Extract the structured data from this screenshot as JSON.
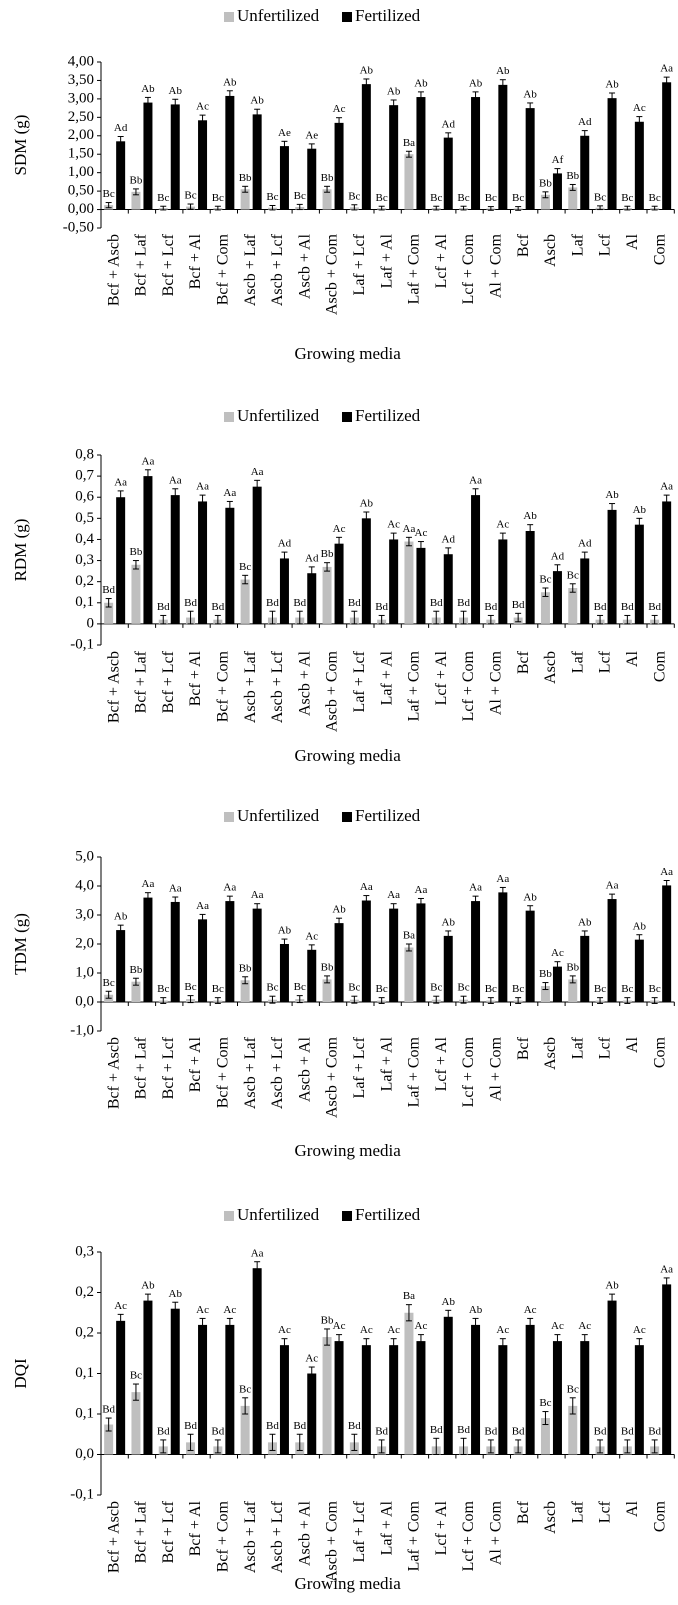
{
  "chart_data": [
    {
      "type": "bar",
      "ylabel": "SDM (g)",
      "xlabel": "Growing media",
      "categories": [
        "Bcf + Ascb",
        "Bcf + Laf",
        "Bcf + Lcf",
        "Bcf + Al",
        "Bcf + Com",
        "Ascb + Laf",
        "Ascb + Lcf",
        "Ascb + Al",
        "Ascb + Com",
        "Laf + Lcf",
        "Laf + Al",
        "Laf + Com",
        "Lcf + Al",
        "Lcf + Com",
        "Al + Com",
        "Bcf",
        "Ascb",
        "Laf",
        "Lcf",
        "Al",
        "Com"
      ],
      "ylim": [
        -0.5,
        4
      ],
      "yticks": [
        {
          "value": -0.5,
          "label": "-0,50"
        },
        {
          "value": 0,
          "label": "0,00"
        },
        {
          "value": 0.5,
          "label": "0,50"
        },
        {
          "value": 1,
          "label": "1,00"
        },
        {
          "value": 1.5,
          "label": "1,50"
        },
        {
          "value": 2,
          "label": "2,00"
        },
        {
          "value": 2.5,
          "label": "2,50"
        },
        {
          "value": 3,
          "label": "3,00"
        },
        {
          "value": 3.5,
          "label": "3,50"
        },
        {
          "value": 4,
          "label": "4,00"
        }
      ],
      "series": [
        {
          "name": "Unfertilized",
          "color": "#bfbfbf",
          "values": [
            0.12,
            0.48,
            0.04,
            0.08,
            0.04,
            0.55,
            0.05,
            0.07,
            0.55,
            0.06,
            0.04,
            1.5,
            0.04,
            0.04,
            0.03,
            0.03,
            0.4,
            0.6,
            0.05,
            0.04,
            0.04
          ],
          "errors": [
            0.07,
            0.08,
            0.05,
            0.07,
            0.05,
            0.08,
            0.06,
            0.07,
            0.08,
            0.07,
            0.05,
            0.08,
            0.05,
            0.05,
            0.05,
            0.05,
            0.08,
            0.08,
            0.05,
            0.05,
            0.05
          ],
          "annotations": [
            "Bc",
            "Bb",
            "Bc",
            "Bc",
            "Bc",
            "Bb",
            "Bc",
            "Bc",
            "Bb",
            "Bc",
            "Bc",
            "Ba",
            "Bc",
            "Bc",
            "Bc",
            "Bc",
            "Bb",
            "Bb",
            "Bc",
            "Bc",
            "Bc"
          ]
        },
        {
          "name": "Fertilized",
          "color": "#000000",
          "values": [
            1.85,
            2.9,
            2.85,
            2.42,
            3.08,
            2.58,
            1.72,
            1.65,
            2.35,
            3.4,
            2.83,
            3.05,
            1.95,
            3.05,
            3.38,
            2.75,
            0.98,
            2.0,
            3.02,
            2.38,
            3.45
          ],
          "errors": [
            0.13,
            0.14,
            0.14,
            0.14,
            0.14,
            0.14,
            0.13,
            0.13,
            0.14,
            0.14,
            0.14,
            0.14,
            0.13,
            0.14,
            0.14,
            0.14,
            0.13,
            0.14,
            0.14,
            0.14,
            0.14
          ],
          "annotations": [
            "Ad",
            "Ab",
            "Ab",
            "Ac",
            "Ab",
            "Ab",
            "Ae",
            "Ae",
            "Ac",
            "Ab",
            "Ab",
            "Ab",
            "Ad",
            "Ab",
            "Ab",
            "Ab",
            "Af",
            "Ad",
            "Ab",
            "Ac",
            "Aa"
          ]
        }
      ]
    },
    {
      "type": "bar",
      "ylabel": "RDM (g)",
      "xlabel": "Growing media",
      "categories": [
        "Bcf + Ascb",
        "Bcf + Laf",
        "Bcf + Lcf",
        "Bcf + Al",
        "Bcf + Com",
        "Ascb + Laf",
        "Ascb + Lcf",
        "Ascb + Al",
        "Ascb + Com",
        "Laf + Lcf",
        "Laf + Al",
        "Laf + Com",
        "Lcf + Al",
        "Lcf + Com",
        "Al + Com",
        "Bcf",
        "Ascb",
        "Laf",
        "Lcf",
        "Al",
        "Com"
      ],
      "ylim": [
        -0.1,
        0.8
      ],
      "yticks": [
        {
          "value": -0.1,
          "label": "-0,1"
        },
        0,
        {
          "value": 0.1,
          "label": "0,1"
        },
        {
          "value": 0.2,
          "label": "0,2"
        },
        {
          "value": 0.3,
          "label": "0,3"
        },
        {
          "value": 0.4,
          "label": "0,4"
        },
        {
          "value": 0.5,
          "label": "0,5"
        },
        {
          "value": 0.6,
          "label": "0,6"
        },
        {
          "value": 0.7,
          "label": "0,7"
        },
        {
          "value": 0.8,
          "label": "0,8"
        }
      ],
      "series": [
        {
          "name": "Unfertilized",
          "color": "#bfbfbf",
          "values": [
            0.1,
            0.28,
            0.02,
            0.03,
            0.02,
            0.21,
            0.03,
            0.03,
            0.27,
            0.03,
            0.02,
            0.39,
            0.03,
            0.03,
            0.02,
            0.03,
            0.15,
            0.17,
            0.02,
            0.02,
            0.02
          ],
          "errors": [
            0.02,
            0.02,
            0.02,
            0.03,
            0.02,
            0.02,
            0.03,
            0.03,
            0.02,
            0.03,
            0.02,
            0.02,
            0.03,
            0.03,
            0.02,
            0.02,
            0.02,
            0.02,
            0.02,
            0.02,
            0.02
          ],
          "annotations": [
            "Bd",
            "Bb",
            "Bd",
            "Bd",
            "Bd",
            "Bc",
            "Bd",
            "Bd",
            "Bb",
            "Bd",
            "Bd",
            "Aa",
            "Bd",
            "Bd",
            "Bd",
            "Bd",
            "Bc",
            "Bc",
            "Bd",
            "Bd",
            "Bd"
          ]
        },
        {
          "name": "Fertilized",
          "color": "#000000",
          "values": [
            0.6,
            0.7,
            0.61,
            0.58,
            0.55,
            0.65,
            0.31,
            0.24,
            0.38,
            0.5,
            0.4,
            0.36,
            0.33,
            0.61,
            0.4,
            0.44,
            0.25,
            0.31,
            0.54,
            0.47,
            0.58
          ],
          "errors": [
            0.03,
            0.03,
            0.03,
            0.03,
            0.03,
            0.03,
            0.03,
            0.03,
            0.03,
            0.03,
            0.03,
            0.03,
            0.03,
            0.03,
            0.03,
            0.03,
            0.03,
            0.03,
            0.03,
            0.03,
            0.03
          ],
          "annotations": [
            "Aa",
            "Aa",
            "Aa",
            "Aa",
            "Aa",
            "Aa",
            "Ad",
            "Ad",
            "Ac",
            "Ab",
            "Ac",
            "Ac",
            "Ad",
            "Aa",
            "Ac",
            "Ab",
            "Ad",
            "Ad",
            "Ab",
            "Ab",
            "Aa"
          ]
        }
      ]
    },
    {
      "type": "bar",
      "ylabel": "TDM (g)",
      "xlabel": "Growing media",
      "categories": [
        "Bcf + Ascb",
        "Bcf + Laf",
        "Bcf + Lcf",
        "Bcf + Al",
        "Bcf + Com",
        "Ascb + Laf",
        "Ascb + Lcf",
        "Ascb + Al",
        "Ascb + Com",
        "Laf + Lcf",
        "Laf + Al",
        "Laf + Com",
        "Lcf + Al",
        "Lcf + Com",
        "Al + Com",
        "Bcf",
        "Ascb",
        "Laf",
        "Lcf",
        "Al",
        "Com"
      ],
      "ylim": [
        -1,
        5
      ],
      "yticks": [
        {
          "value": -1,
          "label": "-1,0"
        },
        {
          "value": 0,
          "label": "0,0"
        },
        {
          "value": 1,
          "label": "1,0"
        },
        {
          "value": 2,
          "label": "2,0"
        },
        {
          "value": 3,
          "label": "3,0"
        },
        {
          "value": 4,
          "label": "4,0"
        },
        {
          "value": 5,
          "label": "5,0"
        }
      ],
      "series": [
        {
          "name": "Unfertilized",
          "color": "#bfbfbf",
          "values": [
            0.25,
            0.7,
            0.05,
            0.1,
            0.05,
            0.75,
            0.08,
            0.1,
            0.78,
            0.08,
            0.05,
            1.88,
            0.08,
            0.08,
            0.05,
            0.05,
            0.55,
            0.78,
            0.05,
            0.05,
            0.05
          ],
          "errors": [
            0.12,
            0.12,
            0.1,
            0.12,
            0.1,
            0.12,
            0.12,
            0.12,
            0.12,
            0.12,
            0.1,
            0.12,
            0.12,
            0.12,
            0.1,
            0.1,
            0.12,
            0.12,
            0.1,
            0.1,
            0.1
          ],
          "annotations": [
            "Bc",
            "Bb",
            "Bc",
            "Bc",
            "Bc",
            "Bb",
            "Bc",
            "Bc",
            "Bb",
            "Bc",
            "Bc",
            "Ba",
            "Bc",
            "Bc",
            "Bc",
            "Bc",
            "Bb",
            "Bb",
            "Bc",
            "Bc",
            "Bc"
          ]
        },
        {
          "name": "Fertilized",
          "color": "#000000",
          "values": [
            2.48,
            3.6,
            3.45,
            2.85,
            3.48,
            3.22,
            2.0,
            1.8,
            2.72,
            3.5,
            3.22,
            3.4,
            2.28,
            3.48,
            3.78,
            3.15,
            1.22,
            2.28,
            3.55,
            2.15,
            4.02
          ],
          "errors": [
            0.17,
            0.17,
            0.17,
            0.17,
            0.17,
            0.17,
            0.17,
            0.17,
            0.17,
            0.17,
            0.17,
            0.17,
            0.17,
            0.17,
            0.17,
            0.17,
            0.17,
            0.17,
            0.17,
            0.17,
            0.17
          ],
          "annotations": [
            "Ab",
            "Aa",
            "Aa",
            "Aa",
            "Aa",
            "Aa",
            "Ab",
            "Ac",
            "Ab",
            "Aa",
            "Aa",
            "Aa",
            "Ab",
            "Aa",
            "Aa",
            "Ab",
            "Ac",
            "Ab",
            "Aa",
            "Ab",
            "Aa"
          ]
        }
      ]
    },
    {
      "type": "bar",
      "ylabel": "DQI",
      "xlabel": "Growing media",
      "categories": [
        "Bcf + Ascb",
        "Bcf + Laf",
        "Bcf + Lcf",
        "Bcf + Al",
        "Bcf + Com",
        "Ascb + Laf",
        "Ascb + Lcf",
        "Ascb + Al",
        "Ascb + Com",
        "Laf + Lcf",
        "Laf + Al",
        "Laf + Com",
        "Lcf + Al",
        "Lcf + Com",
        "Al + Com",
        "Bcf",
        "Ascb",
        "Laf",
        "Lcf",
        "Al",
        "Com"
      ],
      "ylim": [
        -0.05,
        0.25
      ],
      "yticks": [
        {
          "value": -0.05,
          "label": "-0,1"
        },
        {
          "value": 0,
          "label": "0,0"
        },
        {
          "value": 0.05,
          "label": "0,1"
        },
        {
          "value": 0.1,
          "label": "0,1"
        },
        {
          "value": 0.15,
          "label": "0,2"
        },
        {
          "value": 0.2,
          "label": "0,2"
        },
        {
          "value": 0.25,
          "label": "0,3"
        }
      ],
      "series": [
        {
          "name": "Unfertilized",
          "color": "#bfbfbf",
          "values": [
            0.037,
            0.077,
            0.01,
            0.015,
            0.01,
            0.06,
            0.015,
            0.015,
            0.145,
            0.015,
            0.01,
            0.175,
            0.01,
            0.01,
            0.01,
            0.01,
            0.045,
            0.06,
            0.01,
            0.01,
            0.01
          ],
          "errors": [
            0.008,
            0.01,
            0.008,
            0.01,
            0.008,
            0.01,
            0.01,
            0.01,
            0.01,
            0.01,
            0.008,
            0.01,
            0.01,
            0.01,
            0.008,
            0.008,
            0.008,
            0.01,
            0.008,
            0.008,
            0.008
          ],
          "annotations": [
            "Bd",
            "Bc",
            "Bd",
            "Bd",
            "Bd",
            "Bc",
            "Bd",
            "Bd",
            "Bb",
            "Bd",
            "Bd",
            "Ba",
            "Bd",
            "Bd",
            "Bd",
            "Bd",
            "Bc",
            "Bc",
            "Bd",
            "Bd",
            "Bd"
          ]
        },
        {
          "name": "Fertilized",
          "color": "#000000",
          "values": [
            0.165,
            0.19,
            0.18,
            0.16,
            0.16,
            0.23,
            0.135,
            0.1,
            0.14,
            0.135,
            0.135,
            0.14,
            0.17,
            0.16,
            0.135,
            0.16,
            0.14,
            0.14,
            0.19,
            0.135,
            0.21
          ],
          "errors": [
            0.008,
            0.008,
            0.008,
            0.008,
            0.008,
            0.008,
            0.008,
            0.008,
            0.008,
            0.008,
            0.008,
            0.008,
            0.008,
            0.008,
            0.008,
            0.008,
            0.008,
            0.008,
            0.008,
            0.008,
            0.008
          ],
          "annotations": [
            "Ac",
            "Ab",
            "Ab",
            "Ac",
            "Ac",
            "Aa",
            "Ac",
            "Ac",
            "Ac",
            "Ac",
            "Ac",
            "Ac",
            "Ab",
            "Ab",
            "Ac",
            "Ac",
            "Ac",
            "Ac",
            "Ab",
            "Ac",
            "Aa"
          ]
        }
      ]
    }
  ]
}
